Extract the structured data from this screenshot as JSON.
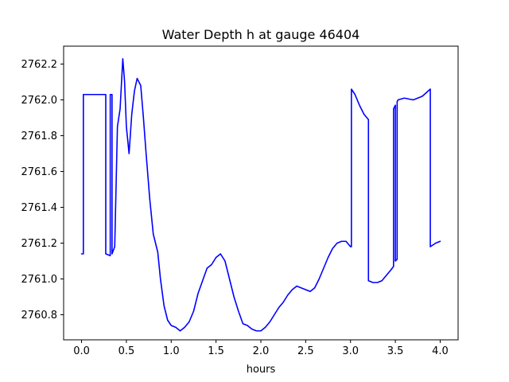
{
  "chart_data": {
    "type": "line",
    "title": "Water Depth h at gauge 46404",
    "xlabel": "hours",
    "ylabel": "",
    "xlim": [
      -0.2,
      4.2
    ],
    "ylim": [
      2760.66,
      2762.3
    ],
    "xticks": [
      0.0,
      0.5,
      1.0,
      1.5,
      2.0,
      2.5,
      3.0,
      3.5,
      4.0
    ],
    "xtick_labels": [
      "0.0",
      "0.5",
      "1.0",
      "1.5",
      "2.0",
      "2.5",
      "3.0",
      "3.5",
      "4.0"
    ],
    "yticks": [
      2760.8,
      2761.0,
      2761.2,
      2761.4,
      2761.6,
      2761.8,
      2762.0,
      2762.2
    ],
    "ytick_labels": [
      "2760.8",
      "2761.0",
      "2761.2",
      "2761.4",
      "2761.6",
      "2761.8",
      "2762.0",
      "2762.2"
    ],
    "grid": false,
    "series": [
      {
        "color": "#0000ff",
        "x": [
          0.0,
          0.02,
          0.02,
          0.27,
          0.27,
          0.32,
          0.32,
          0.34,
          0.34,
          0.37,
          0.4,
          0.43,
          0.46,
          0.48,
          0.5,
          0.53,
          0.56,
          0.59,
          0.62,
          0.66,
          0.69,
          0.72,
          0.76,
          0.8,
          0.85,
          0.88,
          0.92,
          0.96,
          1.0,
          1.05,
          1.1,
          1.15,
          1.2,
          1.25,
          1.3,
          1.35,
          1.4,
          1.45,
          1.5,
          1.55,
          1.6,
          1.65,
          1.7,
          1.75,
          1.8,
          1.85,
          1.9,
          1.95,
          2.0,
          2.05,
          2.1,
          2.15,
          2.2,
          2.25,
          2.3,
          2.35,
          2.4,
          2.45,
          2.5,
          2.55,
          2.6,
          2.65,
          2.7,
          2.75,
          2.8,
          2.85,
          2.9,
          2.95,
          3.0,
          3.01,
          3.01,
          3.05,
          3.1,
          3.15,
          3.2,
          3.2,
          3.25,
          3.3,
          3.35,
          3.4,
          3.45,
          3.48,
          3.48,
          3.5,
          3.5,
          3.52,
          3.52,
          3.53,
          3.53,
          3.6,
          3.7,
          3.8,
          3.89,
          3.89,
          3.95,
          4.0
        ],
        "y": [
          2761.14,
          2761.14,
          2762.03,
          2762.03,
          2761.14,
          2761.13,
          2762.03,
          2762.03,
          2761.14,
          2761.18,
          2761.85,
          2761.95,
          2762.23,
          2762.1,
          2761.85,
          2761.7,
          2761.92,
          2762.05,
          2762.12,
          2762.08,
          2761.9,
          2761.7,
          2761.45,
          2761.25,
          2761.15,
          2761.0,
          2760.85,
          2760.77,
          2760.74,
          2760.73,
          2760.71,
          2760.73,
          2760.76,
          2760.82,
          2760.92,
          2760.99,
          2761.06,
          2761.08,
          2761.12,
          2761.14,
          2761.1,
          2761.0,
          2760.9,
          2760.82,
          2760.75,
          2760.74,
          2760.72,
          2760.71,
          2760.71,
          2760.73,
          2760.76,
          2760.8,
          2760.84,
          2760.87,
          2760.91,
          2760.94,
          2760.96,
          2760.95,
          2760.94,
          2760.93,
          2760.95,
          2761.0,
          2761.06,
          2761.12,
          2761.17,
          2761.2,
          2761.21,
          2761.21,
          2761.18,
          2761.18,
          2762.06,
          2762.03,
          2761.97,
          2761.92,
          2761.89,
          2760.99,
          2760.98,
          2760.98,
          2760.99,
          2761.02,
          2761.05,
          2761.07,
          2761.95,
          2761.97,
          2761.1,
          2761.11,
          2761.99,
          2762.0,
          2762.0,
          2762.01,
          2762.0,
          2762.02,
          2762.06,
          2761.18,
          2761.2,
          2761.21
        ]
      }
    ]
  }
}
